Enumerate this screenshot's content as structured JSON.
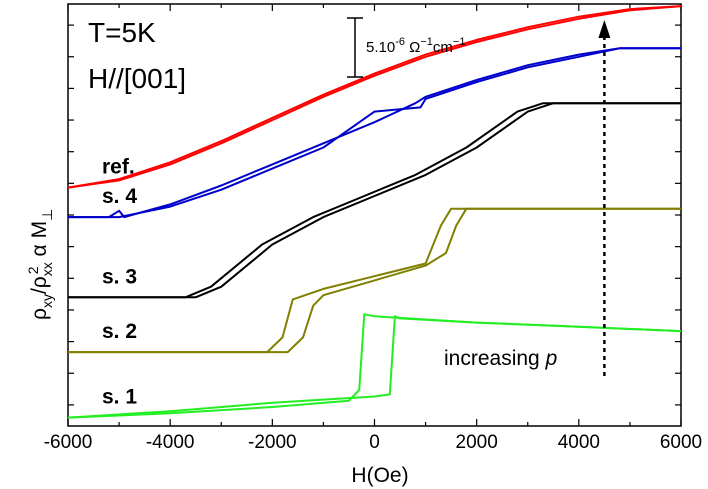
{
  "chart_data": {
    "type": "line",
    "title": "",
    "xlabel": "H(Oe)",
    "ylabel": "ρxy/ρxx² α M⊥",
    "ylabel_parts": {
      "rho": "ρ",
      "xy": "xy",
      "slash": "/",
      "xx": "xx",
      "two": "2",
      "alpha": "α",
      "m": "M",
      "perp": "⊥"
    },
    "xlim": [
      -6000,
      6000
    ],
    "ylim": [
      0,
      10
    ],
    "xticks": [
      "-6000",
      "-4000",
      "-2000",
      "0",
      "2000",
      "4000",
      "6000"
    ],
    "conditions": [
      "T=5K",
      "H//[001]"
    ],
    "scale_bar": {
      "base": "5.10",
      "exp1": "-6",
      "omega": " Ω",
      "exp2": "−1",
      "cm": "cm",
      "exp3": "−1"
    },
    "annotation": {
      "text": "increasing ",
      "var": "p",
      "arrow_x": 4500
    },
    "series": [
      {
        "name": "ref.",
        "color": "#ff0000",
        "up": [
          [
            -6000,
            5.65
          ],
          [
            -5000,
            5.85
          ],
          [
            -4000,
            6.25
          ],
          [
            -3000,
            6.75
          ],
          [
            -2000,
            7.3
          ],
          [
            -1000,
            7.85
          ],
          [
            0,
            8.35
          ],
          [
            1000,
            8.8
          ],
          [
            2000,
            9.15
          ],
          [
            3000,
            9.45
          ],
          [
            4000,
            9.7
          ],
          [
            5000,
            9.88
          ],
          [
            6000,
            9.95
          ]
        ],
        "down": [
          [
            6000,
            9.95
          ],
          [
            5000,
            9.85
          ],
          [
            4000,
            9.65
          ],
          [
            3000,
            9.4
          ],
          [
            2000,
            9.1
          ],
          [
            1000,
            8.75
          ],
          [
            0,
            8.3
          ],
          [
            -1000,
            7.8
          ],
          [
            -2000,
            7.25
          ],
          [
            -3000,
            6.7
          ],
          [
            -4000,
            6.2
          ],
          [
            -5000,
            5.82
          ],
          [
            -6000,
            5.65
          ]
        ]
      },
      {
        "name": "s. 4",
        "color": "#0000cc",
        "up": [
          [
            -6000,
            4.95
          ],
          [
            -5200,
            4.95
          ],
          [
            -5000,
            5.1
          ],
          [
            -4900,
            4.95
          ],
          [
            -4000,
            5.25
          ],
          [
            -3000,
            5.7
          ],
          [
            -2000,
            6.2
          ],
          [
            -1000,
            6.7
          ],
          [
            0,
            7.2
          ],
          [
            800,
            7.65
          ],
          [
            1000,
            7.8
          ],
          [
            2000,
            8.2
          ],
          [
            3000,
            8.55
          ],
          [
            4000,
            8.8
          ],
          [
            4800,
            8.95
          ],
          [
            6000,
            8.95
          ]
        ],
        "down": [
          [
            6000,
            8.95
          ],
          [
            4800,
            8.95
          ],
          [
            4000,
            8.75
          ],
          [
            3000,
            8.5
          ],
          [
            2000,
            8.15
          ],
          [
            1000,
            7.75
          ],
          [
            900,
            7.55
          ],
          [
            0,
            7.45
          ],
          [
            -1000,
            6.6
          ],
          [
            -2000,
            6.1
          ],
          [
            -3000,
            5.6
          ],
          [
            -4000,
            5.2
          ],
          [
            -5000,
            4.95
          ],
          [
            -6000,
            4.95
          ]
        ]
      },
      {
        "name": "s. 3",
        "color": "#000000",
        "up": [
          [
            -6000,
            3.05
          ],
          [
            -3500,
            3.05
          ],
          [
            -3000,
            3.3
          ],
          [
            -2000,
            4.3
          ],
          [
            -1000,
            4.95
          ],
          [
            0,
            5.45
          ],
          [
            1000,
            5.95
          ],
          [
            2000,
            6.6
          ],
          [
            3000,
            7.45
          ],
          [
            3500,
            7.65
          ],
          [
            6000,
            7.65
          ]
        ],
        "down": [
          [
            6000,
            7.65
          ],
          [
            3300,
            7.65
          ],
          [
            2800,
            7.45
          ],
          [
            1800,
            6.6
          ],
          [
            800,
            5.95
          ],
          [
            -200,
            5.45
          ],
          [
            -1200,
            4.95
          ],
          [
            -2200,
            4.3
          ],
          [
            -3200,
            3.3
          ],
          [
            -3700,
            3.05
          ],
          [
            -6000,
            3.05
          ]
        ]
      },
      {
        "name": "s. 2",
        "color": "#808000",
        "up": [
          [
            -6000,
            1.75
          ],
          [
            -1700,
            1.75
          ],
          [
            -1400,
            2.1
          ],
          [
            -1200,
            2.85
          ],
          [
            -1000,
            3.1
          ],
          [
            0,
            3.45
          ],
          [
            1000,
            3.8
          ],
          [
            1400,
            4.1
          ],
          [
            1600,
            4.75
          ],
          [
            1800,
            5.15
          ],
          [
            6000,
            5.15
          ]
        ],
        "down": [
          [
            6000,
            5.15
          ],
          [
            1500,
            5.15
          ],
          [
            1300,
            4.75
          ],
          [
            1000,
            3.85
          ],
          [
            0,
            3.55
          ],
          [
            -1000,
            3.25
          ],
          [
            -1600,
            3.0
          ],
          [
            -1800,
            2.1
          ],
          [
            -2100,
            1.75
          ],
          [
            -6000,
            1.75
          ]
        ]
      },
      {
        "name": "s. 1",
        "color": "#22ee22",
        "up": [
          [
            -6000,
            0.2
          ],
          [
            -4000,
            0.3
          ],
          [
            -2000,
            0.45
          ],
          [
            -500,
            0.6
          ],
          [
            -300,
            0.85
          ],
          [
            -200,
            2.65
          ],
          [
            0,
            2.6
          ],
          [
            2000,
            2.45
          ],
          [
            4000,
            2.35
          ],
          [
            6000,
            2.25
          ]
        ],
        "down": [
          [
            6000,
            2.25
          ],
          [
            4000,
            2.35
          ],
          [
            2000,
            2.45
          ],
          [
            500,
            2.55
          ],
          [
            400,
            2.6
          ],
          [
            300,
            0.75
          ],
          [
            0,
            0.7
          ],
          [
            -2000,
            0.55
          ],
          [
            -4000,
            0.35
          ],
          [
            -6000,
            0.2
          ]
        ]
      }
    ]
  }
}
